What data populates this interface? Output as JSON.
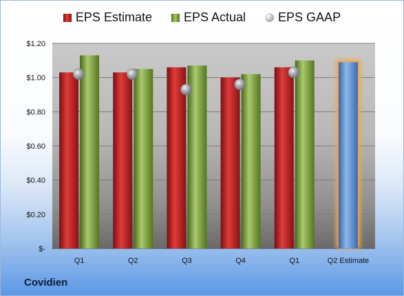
{
  "company": "Covidien",
  "chart_data": {
    "type": "bar",
    "categories": [
      "Q1",
      "Q2",
      "Q3",
      "Q4",
      "Q1",
      "Q2 Estimate"
    ],
    "series": [
      {
        "name": "EPS Estimate",
        "values": [
          1.03,
          1.03,
          1.06,
          1.0,
          1.06,
          null
        ],
        "color": "#c0282a"
      },
      {
        "name": "EPS Actual",
        "values": [
          1.13,
          1.05,
          1.07,
          1.02,
          1.1,
          null
        ],
        "color": "#7fa23b"
      },
      {
        "name": "EPS GAAP",
        "values": [
          1.02,
          1.02,
          0.93,
          0.96,
          1.03,
          null
        ],
        "color": "#a9abb0"
      }
    ],
    "estimate": {
      "category": "Q2 Estimate",
      "value": 1.09,
      "color": "#5b8fd3",
      "glow": "#f2a64a"
    },
    "y_ticks": [
      {
        "value": 0,
        "label": "$-"
      },
      {
        "value": 0.2,
        "label": "$0.20"
      },
      {
        "value": 0.4,
        "label": "$0.40"
      },
      {
        "value": 0.6,
        "label": "$0.60"
      },
      {
        "value": 0.8,
        "label": "$0.80"
      },
      {
        "value": 1.0,
        "label": "$1.00"
      },
      {
        "value": 1.2,
        "label": "$1.20"
      }
    ],
    "ylim": [
      0,
      1.2
    ],
    "grid": true,
    "legend_position": "top",
    "title": "",
    "xlabel": "",
    "ylabel": ""
  }
}
